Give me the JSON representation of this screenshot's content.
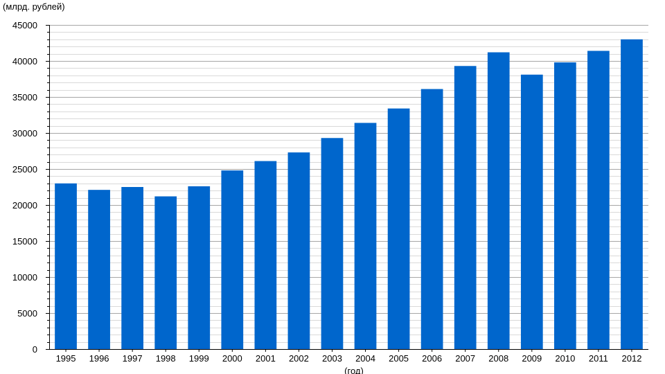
{
  "chart_data": {
    "type": "bar",
    "title": "",
    "ylabel": "(млрд. рублей)",
    "xlabel": "(год)",
    "ylim": [
      0,
      45000
    ],
    "y_major_step": 5000,
    "y_minor_step": 1000,
    "grid": true,
    "bar_color": "#0066cc",
    "categories": [
      "1995",
      "1996",
      "1997",
      "1998",
      "1999",
      "2000",
      "2001",
      "2002",
      "2003",
      "2004",
      "2005",
      "2006",
      "2007",
      "2008",
      "2009",
      "2010",
      "2011",
      "2012"
    ],
    "values": [
      23000,
      22100,
      22500,
      21200,
      22600,
      24800,
      26100,
      27300,
      29300,
      31400,
      33400,
      36100,
      39300,
      41200,
      38100,
      39800,
      41400,
      43000
    ]
  }
}
